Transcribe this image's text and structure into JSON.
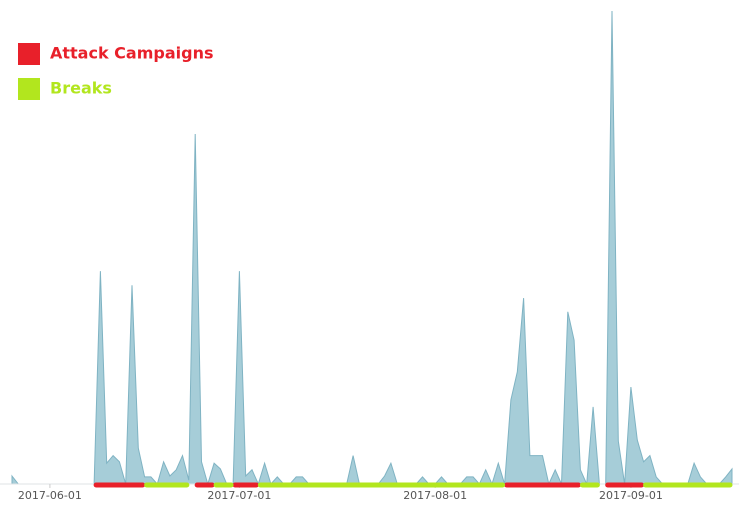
{
  "chart_data": {
    "type": "area",
    "x": [
      "2017-05-26",
      "2017-05-27",
      "2017-06-08",
      "2017-06-09",
      "2017-06-10",
      "2017-06-11",
      "2017-06-12",
      "2017-06-13",
      "2017-06-14",
      "2017-06-15",
      "2017-06-16",
      "2017-06-17",
      "2017-06-18",
      "2017-06-19",
      "2017-06-20",
      "2017-06-21",
      "2017-06-22",
      "2017-06-23",
      "2017-06-24",
      "2017-06-25",
      "2017-06-26",
      "2017-06-27",
      "2017-06-28",
      "2017-06-29",
      "2017-06-30",
      "2017-07-01",
      "2017-07-02",
      "2017-07-03",
      "2017-07-04",
      "2017-07-05",
      "2017-07-06",
      "2017-07-07",
      "2017-07-08",
      "2017-07-09",
      "2017-07-10",
      "2017-07-11",
      "2017-07-12",
      "2017-07-18",
      "2017-07-19",
      "2017-07-20",
      "2017-07-23",
      "2017-07-24",
      "2017-07-25",
      "2017-07-26",
      "2017-07-29",
      "2017-07-30",
      "2017-07-31",
      "2017-08-01",
      "2017-08-02",
      "2017-08-03",
      "2017-08-05",
      "2017-08-06",
      "2017-08-07",
      "2017-08-08",
      "2017-08-09",
      "2017-08-10",
      "2017-08-11",
      "2017-08-12",
      "2017-08-13",
      "2017-08-14",
      "2017-08-15",
      "2017-08-16",
      "2017-08-17",
      "2017-08-18",
      "2017-08-19",
      "2017-08-20",
      "2017-08-21",
      "2017-08-22",
      "2017-08-23",
      "2017-08-24",
      "2017-08-25",
      "2017-08-26",
      "2017-08-27",
      "2017-08-28",
      "2017-08-29",
      "2017-08-30",
      "2017-08-31",
      "2017-09-01",
      "2017-09-02",
      "2017-09-03",
      "2017-09-04",
      "2017-09-05",
      "2017-09-06",
      "2017-09-10",
      "2017-09-11",
      "2017-09-12",
      "2017-09-13",
      "2017-09-15",
      "2017-09-16",
      "2017-09-17"
    ],
    "series": [
      {
        "color": "#a6cdd8",
        "values": [
          1.7,
          0,
          0,
          45,
          4.4,
          6,
          4.7,
          0,
          42,
          7.6,
          1.5,
          1.5,
          0,
          4.7,
          1.7,
          3,
          6,
          0.8,
          74,
          4.7,
          0,
          4.4,
          3.2,
          0,
          0,
          45,
          1.7,
          3,
          0,
          4.4,
          0,
          1.5,
          0,
          0,
          1.5,
          1.5,
          0,
          0,
          6,
          0,
          0,
          1.7,
          4.4,
          0,
          0,
          1.5,
          0,
          0,
          1.5,
          0,
          0,
          1.5,
          1.5,
          0,
          3,
          0,
          4.4,
          0,
          17.8,
          23.7,
          39.3,
          6,
          6,
          6,
          0,
          3,
          0,
          36.4,
          30.4,
          3,
          0,
          16.3,
          0,
          0,
          100,
          9.1,
          0,
          20.5,
          9.3,
          4.7,
          6,
          1.5,
          0,
          0,
          4.4,
          1.5,
          0,
          0,
          1.5,
          3.2
        ]
      }
    ],
    "xlim": [
      "2017-05-26",
      "2017-09-17"
    ],
    "xticks": [
      "2017-06-01",
      "2017-07-01",
      "2017-08-01",
      "2017-09-01"
    ],
    "ylim": [
      0,
      100
    ],
    "periods": [
      {
        "name": "Attack Campaigns",
        "color": "#e8202a",
        "ranges": [
          [
            "2017-06-08",
            "2017-06-16"
          ],
          [
            "2017-06-24",
            "2017-06-27"
          ],
          [
            "2017-06-30",
            "2017-07-04"
          ],
          [
            "2017-08-12",
            "2017-08-24"
          ],
          [
            "2017-08-28",
            "2017-09-03"
          ]
        ]
      },
      {
        "name": "Breaks",
        "color": "#b2e61e",
        "ranges": [
          [
            "2017-06-16",
            "2017-06-23"
          ],
          [
            "2017-06-27",
            "2017-06-30"
          ],
          [
            "2017-07-04",
            "2017-08-12"
          ],
          [
            "2017-08-24",
            "2017-08-27"
          ],
          [
            "2017-09-03",
            "2017-09-17"
          ]
        ]
      }
    ]
  }
}
